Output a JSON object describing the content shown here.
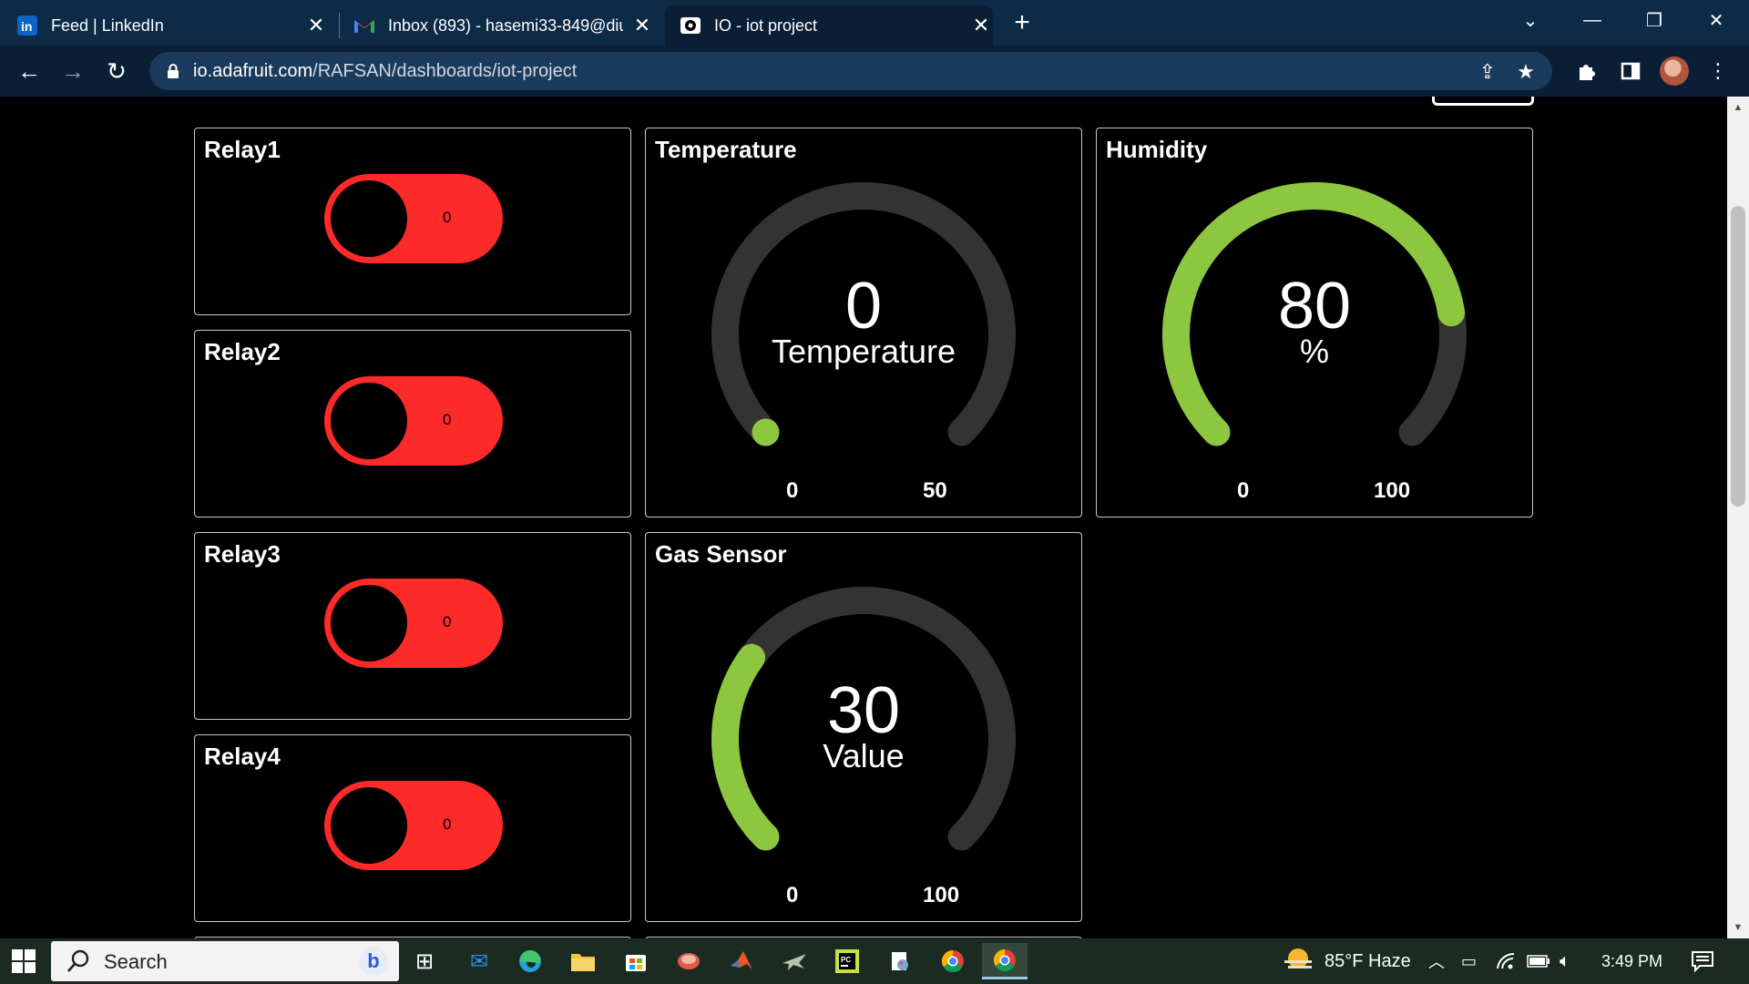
{
  "browser": {
    "tabs": [
      {
        "title": "Feed | LinkedIn",
        "icon": "linkedin-icon"
      },
      {
        "title": "Inbox (893) - hasemi33-849@diu",
        "icon": "gmail-icon"
      },
      {
        "title": "IO - iot project",
        "icon": "adafruit-io-icon"
      }
    ],
    "new_tab": "+",
    "url_host": "io.adafruit.com",
    "url_path": "/RAFSAN/dashboards/iot-project"
  },
  "dashboard": {
    "relays": [
      {
        "title": "Relay1",
        "value": "0"
      },
      {
        "title": "Relay2",
        "value": "0"
      },
      {
        "title": "Relay3",
        "value": "0"
      },
      {
        "title": "Relay4",
        "value": "0"
      }
    ],
    "temperature": {
      "title": "Temperature",
      "value": "0",
      "label": "Temperature",
      "min": "0",
      "max": "50",
      "fraction": 0.0
    },
    "humidity": {
      "title": "Humidity",
      "value": "80",
      "label": "%",
      "min": "0",
      "max": "100",
      "fraction": 0.8
    },
    "gas": {
      "title": "Gas Sensor",
      "value": "30",
      "label": "Value",
      "min": "0",
      "max": "100",
      "fraction": 0.3
    }
  },
  "colors": {
    "toggle_off": "#fd2a2a",
    "gauge_fill": "#8dc63f",
    "gauge_track": "#333333",
    "chrome_bg": "#0a1f36"
  },
  "taskbar": {
    "search_placeholder": "Search",
    "weather": "85°F  Haze",
    "time": "3:49 PM"
  }
}
